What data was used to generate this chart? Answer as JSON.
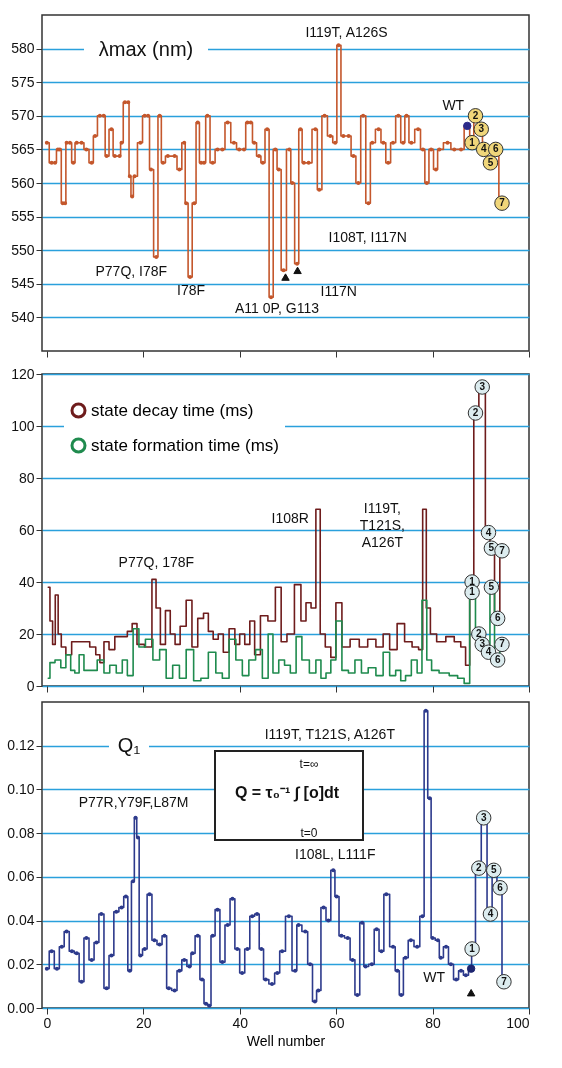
{
  "chart_data": [
    {
      "type": "step",
      "ylabel": "λmax (nm)",
      "xlim": [
        -1,
        100
      ],
      "xticks": [
        0,
        20,
        40,
        60,
        80,
        100
      ],
      "ylim": [
        535,
        585
      ],
      "yticks": [
        540,
        545,
        550,
        555,
        560,
        565,
        570,
        575,
        580
      ],
      "grid": "y",
      "tick_labels": "y",
      "marker": "circle",
      "series": [
        {
          "color": "#c4572c",
          "x": [
            0,
            1,
            1.7,
            2.3,
            2.7,
            3.3,
            3.8,
            4.1,
            4.8,
            5.5,
            6.2,
            7.2,
            8.2,
            9.3,
            10,
            11,
            11.8,
            12.4,
            13.4,
            14.1,
            15.1,
            15.5,
            16.2,
            16.9,
            17.2,
            17.7,
            18.2,
            19.4,
            20.3,
            21,
            21.6,
            22.7,
            23.4,
            24.1,
            25.1,
            26.5,
            27.5,
            28.5,
            28.9,
            29.7,
            30.6,
            31.3,
            32,
            32.6,
            33.3,
            34.4,
            35.4,
            36.4,
            37.5,
            38.8,
            39.9,
            40.9,
            41.6,
            42.3,
            43,
            44,
            44.8,
            45.7,
            46.5,
            47.4,
            48.1,
            49.1,
            50.3,
            50.9,
            51.9,
            52.6,
            53.3,
            54.3,
            55.7,
            56.5,
            57.6,
            58.8,
            59.8,
            60.5,
            61.5,
            62.6,
            63.6,
            64.6,
            65.6,
            66.7,
            67.5,
            68.8,
            69.8,
            70.8,
            71.8,
            72.9,
            73.9,
            74.6,
            75.6,
            77,
            78,
            78.8,
            79.7,
            80.7,
            81.4,
            83.1,
            84.5,
            85.9,
            87.2,
            88.2,
            88.9,
            90.1,
            90.6,
            92,
            93.1,
            94.4
          ],
          "values": [
            566,
            563,
            563,
            565,
            565,
            557,
            557,
            566,
            566,
            563,
            566,
            566,
            565,
            563,
            567,
            570,
            570,
            564,
            568,
            564,
            564,
            566,
            572,
            572,
            561,
            558,
            561,
            566,
            570,
            570,
            562,
            549,
            570,
            563,
            564,
            564,
            562,
            566,
            557,
            546,
            557,
            569,
            563,
            563,
            570,
            563,
            565,
            565,
            569,
            566,
            565,
            565,
            569,
            569,
            566,
            564,
            563,
            568,
            543,
            565,
            562,
            547,
            565,
            560,
            548,
            568,
            563,
            563,
            568,
            559,
            570,
            567,
            566,
            580.5,
            567,
            567,
            564,
            560,
            570,
            557,
            566,
            568,
            566,
            563,
            566,
            570,
            566,
            570,
            566,
            568,
            565,
            560,
            565,
            562,
            565,
            566,
            565,
            565,
            568.5,
            566,
            570,
            568,
            565,
            563,
            565,
            557
          ]
        },
        {
          "type": "scatter",
          "color": "#f0d67a",
          "x": [
            88.2,
            88.9,
            90.1,
            90.6,
            92,
            93.1,
            94.4
          ],
          "values": [
            566,
            570,
            568,
            565,
            563,
            565,
            557
          ]
        },
        {
          "type": "scatter",
          "color": "#2b2a8a",
          "x": [
            87.2
          ],
          "values": [
            568.5
          ]
        },
        {
          "type": "scatter",
          "marker": "triangle",
          "color": "#111111",
          "x": [
            49.5,
            52
          ],
          "values": [
            546,
            547
          ]
        }
      ],
      "annotations": [
        {
          "text": "I119T, A126S",
          "x": 60.5,
          "y": 580.5
        },
        {
          "text": "P77Q, I78F",
          "x": 22.7,
          "y": 549
        },
        {
          "text": "I78F",
          "x": 29.7,
          "y": 546
        },
        {
          "text": "A11 0P, G113",
          "x": 46.5,
          "y": 543
        },
        {
          "text": "I117N",
          "x": 49.5,
          "y": 546
        },
        {
          "text": "I108T, I117N",
          "x": 52,
          "y": 547
        },
        {
          "text": "WT",
          "x": 87.2,
          "y": 568.5
        },
        {
          "text": "1",
          "x": 88.2,
          "y": 566
        },
        {
          "text": "2",
          "x": 88.9,
          "y": 570
        },
        {
          "text": "3",
          "x": 90.1,
          "y": 568
        },
        {
          "text": "4",
          "x": 90.6,
          "y": 565
        },
        {
          "text": "5",
          "x": 92,
          "y": 563
        },
        {
          "text": "6",
          "x": 93.1,
          "y": 565
        },
        {
          "text": "7",
          "x": 94.4,
          "y": 557
        }
      ]
    },
    {
      "type": "step",
      "xlim": [
        -1,
        100
      ],
      "xticks": [
        0,
        20,
        40,
        60,
        80,
        100
      ],
      "ylim": [
        0,
        120
      ],
      "yticks": [
        0,
        20,
        40,
        60,
        80,
        100,
        120
      ],
      "grid": "y",
      "tick_labels": "y",
      "legend": "top left",
      "series": [
        {
          "name": "state decay time (ms)",
          "color": "#6e1c1c",
          "x": [
            0.3,
            1,
            1.4,
            2.1,
            2.6,
            3.4,
            4.5,
            5.8,
            8.2,
            9.6,
            10.7,
            11.3,
            12.4,
            13.4,
            14.8,
            16.2,
            17.2,
            18.2,
            19.2,
            21.3,
            22.3,
            23,
            24.1,
            25.1,
            26.1,
            27.1,
            28.2,
            29.6,
            30.6,
            32,
            33,
            34,
            35,
            36.1,
            37.1,
            38.5,
            39.5,
            40.5,
            41.6,
            42.6,
            43.6,
            45,
            46.7,
            48.1,
            49.1,
            50.5,
            52.2,
            53.2,
            54.3,
            55.3,
            56.3,
            57.1,
            58.4,
            59.4,
            60.5,
            61.9,
            63.9,
            65.7,
            67.4,
            69.1,
            70.4,
            71.8,
            73.5,
            74.9,
            76.6,
            77.6,
            78.3,
            79.1,
            80,
            81.7,
            83.8,
            85.2,
            86.5,
            87.2,
            88.2,
            88.9,
            90.3,
            91.6,
            92.2,
            93.5,
            94.4
          ],
          "values": [
            38,
            25,
            16,
            35,
            20,
            15,
            12,
            17,
            17,
            15,
            12,
            9,
            17,
            14,
            19,
            19,
            21,
            24,
            16,
            15,
            41,
            30,
            16,
            29,
            20,
            16,
            23,
            33,
            15,
            26,
            28,
            21,
            18,
            20,
            13,
            22,
            16,
            20,
            16,
            25,
            12,
            27,
            25,
            38,
            17,
            20,
            39,
            25,
            32,
            30,
            68,
            20,
            15,
            11,
            32,
            15,
            18,
            15,
            18,
            15,
            20,
            14,
            24,
            17,
            15,
            14,
            68,
            30,
            20,
            17,
            19,
            17,
            15,
            8,
            40,
            105,
            115,
            59,
            53,
            26,
            52
          ]
        },
        {
          "name": "state formation time (ms)",
          "color": "#1f8b4e",
          "x": [
            0.3,
            1,
            2.4,
            3.4,
            4.5,
            5.4,
            6.2,
            7.2,
            8.2,
            9.6,
            11.3,
            12.4,
            13.7,
            15.1,
            16.2,
            17.2,
            18.6,
            19.6,
            21.3,
            22.7,
            24.1,
            25.4,
            26.8,
            28.2,
            29.6,
            31.3,
            32.6,
            34.4,
            35.7,
            37.1,
            38.5,
            39.9,
            41.2,
            42.6,
            44,
            45.4,
            46.4,
            47.4,
            48.8,
            49.8,
            51.2,
            52.2,
            53.6,
            55.3,
            56.3,
            57.4,
            58.4,
            59.4,
            60.5,
            61.9,
            63.2,
            64.6,
            65.9,
            67.4,
            69.1,
            70.4,
            71.8,
            72.9,
            73.9,
            74.9,
            76.3,
            77.3,
            78.3,
            79.3,
            80.3,
            82.4,
            84.5,
            85.9,
            87.2,
            88.2,
            89.6,
            90.3,
            91.6,
            92.2,
            93.5,
            94.4
          ],
          "values": [
            3,
            9,
            10,
            7,
            12,
            6,
            5,
            12,
            6,
            6,
            10,
            5,
            8,
            5,
            10,
            4,
            22,
            15,
            18,
            10,
            14,
            3,
            8,
            3,
            14,
            2,
            3,
            13,
            5,
            3,
            18,
            10,
            4,
            10,
            14,
            3,
            20,
            5,
            10,
            8,
            5,
            19,
            10,
            5,
            10,
            3,
            5,
            10,
            25,
            6,
            5,
            10,
            5,
            7,
            4,
            13,
            4,
            6,
            2,
            4,
            10,
            5,
            33,
            10,
            6,
            5,
            4,
            3,
            1,
            36,
            20,
            16,
            13,
            38,
            10,
            16
          ]
        },
        {
          "type": "scatter",
          "marker": "circle",
          "color": "#dcecef",
          "x": [
            88.2,
            88.9,
            90.3,
            91.6,
            92.2,
            93.5,
            94.4
          ],
          "values": [
            40,
            105,
            115,
            59,
            53,
            26,
            52
          ]
        },
        {
          "type": "scatter",
          "marker": "circle",
          "color": "#dcecef",
          "x": [
            88.2,
            89.6,
            90.3,
            91.6,
            92.2,
            93.5,
            94.4
          ],
          "values": [
            36,
            20,
            16,
            13,
            38,
            10,
            16
          ]
        }
      ],
      "annotations": [
        {
          "text": "P77Q, 178F",
          "x": 22.3,
          "y": 41
        },
        {
          "text": "I108R",
          "x": 56.3,
          "y": 68
        },
        {
          "text": "I119T,\nT121S,\nA126T",
          "x": 78.3,
          "y": 68
        },
        {
          "text": "1",
          "x": 88.2,
          "y": 40
        },
        {
          "text": "2",
          "x": 88.9,
          "y": 105
        },
        {
          "text": "3",
          "x": 90.3,
          "y": 115
        },
        {
          "text": "4",
          "x": 91.6,
          "y": 59
        },
        {
          "text": "5",
          "x": 92.2,
          "y": 53
        },
        {
          "text": "6",
          "x": 93.5,
          "y": 26
        },
        {
          "text": "7",
          "x": 94.4,
          "y": 52
        },
        {
          "text": "1",
          "x": 88.2,
          "y": 36
        },
        {
          "text": "2",
          "x": 89.6,
          "y": 20
        },
        {
          "text": "3",
          "x": 90.3,
          "y": 16
        },
        {
          "text": "4",
          "x": 91.6,
          "y": 13
        },
        {
          "text": "5",
          "x": 92.2,
          "y": 38
        },
        {
          "text": "6",
          "x": 93.5,
          "y": 10
        },
        {
          "text": "7",
          "x": 94.4,
          "y": 16
        }
      ]
    },
    {
      "type": "step",
      "ylabel": "Q₁",
      "xlabel": "Well number",
      "xlim": [
        -1,
        100
      ],
      "xticks": [
        0,
        20,
        40,
        60,
        80,
        100
      ],
      "ylim": [
        0,
        0.14
      ],
      "yticks": [
        {
          "value": 0,
          "label": "0.00"
        },
        0.02,
        0.04,
        0.06,
        0.08,
        {
          "value": 0.1,
          "label": "0.10"
        },
        0.12
      ],
      "grid": "y",
      "marker": "circle",
      "series": [
        {
          "color": "#2d3a8c",
          "x": [
            0,
            1,
            2.1,
            3.1,
            4.1,
            5.2,
            6.2,
            7.2,
            8.2,
            9.3,
            10.3,
            11.3,
            12.4,
            13.4,
            14.4,
            15.5,
            16.4,
            17.2,
            17.9,
            18.4,
            18.9,
            19.4,
            20.3,
            21.3,
            22.3,
            23.4,
            24.4,
            25.3,
            26.5,
            27.5,
            28.5,
            29.6,
            30.2,
            31.3,
            32.2,
            33,
            33.7,
            34.4,
            35.4,
            36.4,
            37.5,
            38.5,
            39.5,
            40.5,
            41.6,
            42.6,
            43.6,
            44.5,
            45.4,
            46.7,
            47.8,
            48.8,
            50.2,
            51.5,
            52.2,
            53.6,
            54.6,
            55.6,
            56.3,
            57.4,
            58.4,
            59.4,
            60.1,
            61.1,
            62.4,
            63.4,
            64.4,
            65.4,
            66.1,
            67.4,
            68.4,
            69.4,
            70.4,
            71.8,
            72.7,
            73.5,
            74.4,
            75.5,
            76.8,
            77.9,
            78.6,
            79.4,
            80,
            81.1,
            81.7,
            82.8,
            83.8,
            84.9,
            85.9,
            86.9,
            88,
            88.2,
            89.6,
            90.6,
            92,
            92.7,
            94,
            94.8
          ],
          "values": [
            0.018,
            0.026,
            0.018,
            0.028,
            0.035,
            0.026,
            0.025,
            0.012,
            0.032,
            0.022,
            0.03,
            0.043,
            0.009,
            0.024,
            0.044,
            0.046,
            0.051,
            0.017,
            0.058,
            0.087,
            0.078,
            0.024,
            0.027,
            0.052,
            0.031,
            0.029,
            0.033,
            0.009,
            0.008,
            0.017,
            0.022,
            0.019,
            0.025,
            0.033,
            0.013,
            0.002,
            0.001,
            0.033,
            0.045,
            0.021,
            0.038,
            0.05,
            0.027,
            0.016,
            0.027,
            0.042,
            0.043,
            0.027,
            0.013,
            0.011,
            0.016,
            0.026,
            0.042,
            0.017,
            0.038,
            0.035,
            0.02,
            0.003,
            0.008,
            0.046,
            0.04,
            0.063,
            0.051,
            0.033,
            0.032,
            0.022,
            0.006,
            0.039,
            0.019,
            0.02,
            0.036,
            0.026,
            0.052,
            0.028,
            0.017,
            0.006,
            0.023,
            0.031,
            0.028,
            0.042,
            0.136,
            0.096,
            0.032,
            0.031,
            0.023,
            0.028,
            0.02,
            0.013,
            0.017,
            0.015,
            0.018,
            0.027,
            0.064,
            0.087,
            0.043,
            0.063,
            0.055,
            0.012
          ]
        },
        {
          "type": "scatter",
          "color": "#dcecef",
          "x": [
            88.2,
            89.6,
            90.6,
            92,
            92.7,
            94,
            94.8
          ],
          "values": [
            0.027,
            0.064,
            0.087,
            0.043,
            0.063,
            0.055,
            0.012
          ]
        },
        {
          "type": "scatter",
          "color": "#1d2570",
          "x": [
            88
          ],
          "values": [
            0.018
          ]
        },
        {
          "type": "scatter",
          "marker": "triangle",
          "color": "#111111",
          "x": [
            88
          ],
          "values": [
            0.007
          ]
        }
      ],
      "annotations": [
        {
          "text": "P77R,Y79F,L87M",
          "x": 18.4,
          "y": 0.087
        },
        {
          "text": "I119T, T121S, A126T",
          "x": 78.6,
          "y": 0.136
        },
        {
          "text": "I108L, L111F",
          "x": 59.4,
          "y": 0.063
        },
        {
          "text": "WT",
          "x": 88,
          "y": 0.018
        },
        "Q = τ₀⁻¹ ∫ [o]dt",
        "t=∞",
        "t=0",
        {
          "text": "1",
          "x": 88.2,
          "y": 0.027
        },
        {
          "text": "2",
          "x": 89.6,
          "y": 0.064
        },
        {
          "text": "3",
          "x": 90.6,
          "y": 0.087
        },
        {
          "text": "4",
          "x": 92,
          "y": 0.043
        },
        {
          "text": "5",
          "x": 92.7,
          "y": 0.063
        },
        {
          "text": "6",
          "x": 94,
          "y": 0.055
        },
        {
          "text": "7",
          "x": 94.8,
          "y": 0.012
        }
      ]
    }
  ]
}
